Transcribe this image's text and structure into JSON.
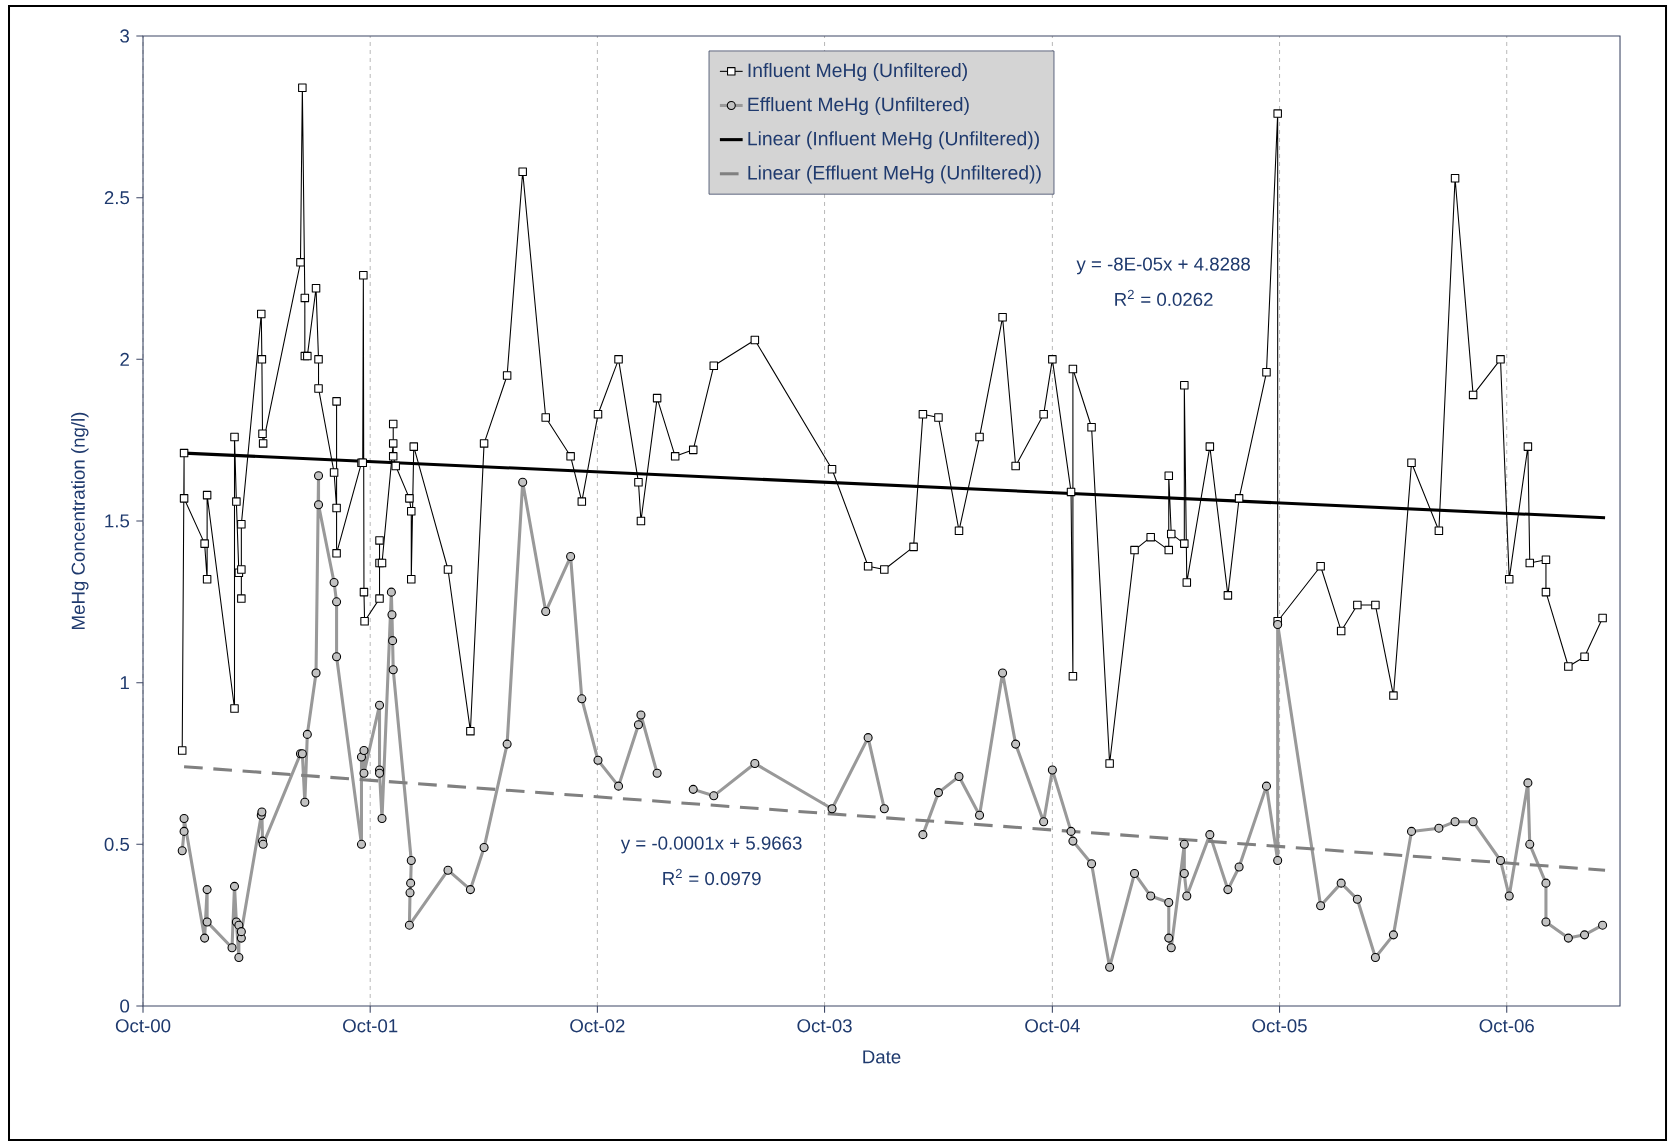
{
  "chart_data": {
    "type": "line",
    "xlabel": "Date",
    "ylabel": "MeHg Concentration (ng/l)",
    "xlim": [
      "2000-10-01",
      "2007-04-01"
    ],
    "ylim": [
      0,
      3
    ],
    "xticks": [
      {
        "value": "2000-10-01",
        "label": "Oct-00"
      },
      {
        "value": "2001-10-01",
        "label": "Oct-01"
      },
      {
        "value": "2002-10-01",
        "label": "Oct-02"
      },
      {
        "value": "2003-10-01",
        "label": "Oct-03"
      },
      {
        "value": "2004-10-01",
        "label": "Oct-04"
      },
      {
        "value": "2005-10-01",
        "label": "Oct-05"
      },
      {
        "value": "2006-10-01",
        "label": "Oct-06"
      }
    ],
    "yticks": [
      0,
      0.5,
      1,
      1.5,
      2,
      2.5,
      3
    ],
    "grid": "x",
    "legend": "top",
    "annotations": [
      "y = -8E-05x + 4.8288",
      "R$^{2}$ = 0.0262",
      "y = -0.0001x + 5.9663",
      "R$^{2}$ = 0.0979"
    ],
    "series": [
      {
        "name": "Influent MeHg (Unfiltered)",
        "color": "#000000",
        "marker": "square",
        "line_style": "solid",
        "x": [
          "2000-12-03",
          "2000-12-06",
          "2000-12-06",
          "2001-01-08",
          "2001-01-12",
          "2001-01-12",
          "2001-02-25",
          "2001-02-25",
          "2001-02-28",
          "2001-03-04",
          "2001-03-08",
          "2001-03-08",
          "2001-03-08",
          "2001-04-09",
          "2001-04-10",
          "2001-04-11",
          "2001-04-12",
          "2001-06-11",
          "2001-06-14",
          "2001-06-18",
          "2001-06-18",
          "2001-06-22",
          "2001-07-06",
          "2001-07-10",
          "2001-07-10",
          "2001-08-04",
          "2001-08-08",
          "2001-08-08",
          "2001-08-08",
          "2001-09-17",
          "2001-09-19",
          "2001-09-20",
          "2001-09-21",
          "2001-09-22",
          "2001-10-16",
          "2001-10-16",
          "2001-10-16",
          "2001-10-20",
          "2001-11-07",
          "2001-11-07",
          "2001-11-07",
          "2001-11-11",
          "2001-12-03",
          "2001-12-06",
          "2001-12-06",
          "2001-12-10",
          "2002-02-03",
          "2002-03-11",
          "2002-04-02",
          "2002-05-09",
          "2002-06-03",
          "2002-07-10",
          "2002-08-19",
          "2002-09-06",
          "2002-10-02",
          "2002-11-04",
          "2002-12-06",
          "2002-12-10",
          "2003-01-05",
          "2003-02-03",
          "2003-03-04",
          "2003-04-06",
          "2003-06-11",
          "2003-10-13",
          "2003-12-10",
          "2004-01-05",
          "2004-02-21",
          "2004-03-07",
          "2004-04-01",
          "2004-05-04",
          "2004-06-06",
          "2004-07-13",
          "2004-08-03",
          "2004-09-17",
          "2004-10-01",
          "2004-10-31",
          "2004-11-03",
          "2004-11-03",
          "2004-12-03",
          "2005-01-01",
          "2005-02-10",
          "2005-03-08",
          "2005-04-06",
          "2005-04-06",
          "2005-04-10",
          "2005-05-01",
          "2005-05-01",
          "2005-05-05",
          "2005-06-11",
          "2005-07-10",
          "2005-07-28",
          "2005-09-10",
          "2005-09-28",
          "2005-09-28",
          "2005-12-06",
          "2006-01-08",
          "2006-02-03",
          "2006-03-04",
          "2006-04-02",
          "2006-05-01",
          "2006-06-14",
          "2006-07-10",
          "2006-08-08",
          "2006-09-21",
          "2006-10-05",
          "2006-11-04",
          "2006-11-07",
          "2006-12-03",
          "2006-12-03",
          "2007-01-08",
          "2007-02-03",
          "2007-03-04"
        ],
        "values": [
          0.79,
          1.71,
          1.57,
          1.43,
          1.32,
          1.58,
          0.92,
          1.76,
          1.56,
          1.34,
          1.35,
          1.26,
          1.49,
          2.14,
          2.0,
          1.77,
          1.74,
          2.3,
          2.84,
          2.19,
          2.01,
          2.01,
          2.22,
          2.0,
          1.91,
          1.65,
          1.54,
          1.87,
          1.4,
          1.68,
          1.68,
          2.26,
          1.28,
          1.19,
          1.26,
          1.44,
          1.37,
          1.37,
          1.74,
          1.8,
          1.7,
          1.67,
          1.57,
          1.53,
          1.32,
          1.73,
          1.35,
          0.85,
          1.74,
          1.95,
          2.58,
          1.82,
          1.7,
          1.56,
          1.83,
          2.0,
          1.62,
          1.5,
          1.88,
          1.7,
          1.72,
          1.98,
          2.06,
          1.66,
          1.36,
          1.35,
          1.42,
          1.83,
          1.82,
          1.47,
          1.76,
          2.13,
          1.67,
          1.83,
          2.0,
          1.59,
          1.02,
          1.97,
          1.79,
          0.75,
          1.41,
          1.45,
          1.41,
          1.64,
          1.46,
          1.43,
          1.92,
          1.31,
          1.73,
          1.27,
          1.57,
          1.96,
          2.76,
          1.19,
          1.36,
          1.16,
          1.24,
          1.24,
          0.96,
          1.68,
          1.47,
          2.56,
          1.89,
          2.0,
          1.32,
          1.73,
          1.37,
          1.38,
          1.28,
          1.05,
          1.08,
          1.2
        ]
      },
      {
        "name": "Effluent MeHg (Unfiltered)",
        "color": "#999999",
        "marker": "circle",
        "line_style": "solid",
        "x": [
          "2000-12-03",
          "2000-12-06",
          "2000-12-06",
          "2001-01-08",
          "2001-01-12",
          "2001-01-12",
          "2001-02-21",
          "2001-02-25",
          "2001-02-28",
          "2001-03-04",
          "2001-03-04",
          "2001-03-08",
          "2001-03-08",
          "2001-04-09",
          "2001-04-10",
          "2001-04-11",
          "2001-04-12",
          "2001-06-11",
          "2001-06-14",
          "2001-06-18",
          "2001-06-22",
          "2001-07-06",
          "2001-07-10",
          "2001-07-10",
          "2001-08-04",
          "2001-08-08",
          "2001-08-08",
          "2001-09-17",
          "2001-09-17",
          "2001-09-21",
          "2001-09-21",
          "2001-10-16",
          "2001-10-16",
          "2001-10-16",
          "2001-10-20",
          "2001-11-04",
          "2001-11-05",
          "2001-11-06",
          "2001-11-07",
          "2001-12-06",
          "2001-12-05",
          "2001-12-04",
          "2001-12-03",
          "2002-02-03",
          "2002-03-11",
          "2002-04-02",
          "2002-05-09",
          "2002-06-03",
          "2002-07-10",
          "2002-08-19",
          "2002-09-06",
          "2002-10-02",
          "2002-11-04",
          "2002-12-06",
          "2002-12-10",
          "2003-01-05",
          "2003-01-19",
          "2003-03-04",
          "2003-04-06",
          "2003-06-11",
          "2003-10-13",
          "2003-12-10",
          "2004-01-05",
          "2004-02-07",
          "2004-03-07",
          "2004-04-01",
          "2004-05-04",
          "2004-06-06",
          "2004-07-13",
          "2004-08-03",
          "2004-09-17",
          "2004-10-01",
          "2004-10-31",
          "2004-11-03",
          "2004-12-03",
          "2005-01-01",
          "2005-02-10",
          "2005-03-08",
          "2005-04-06",
          "2005-04-06",
          "2005-04-10",
          "2005-05-01",
          "2005-05-01",
          "2005-05-05",
          "2005-06-11",
          "2005-07-10",
          "2005-07-28",
          "2005-09-10",
          "2005-09-28",
          "2005-09-28",
          "2005-12-06",
          "2006-01-08",
          "2006-02-03",
          "2006-03-04",
          "2006-04-02",
          "2006-05-01",
          "2006-06-14",
          "2006-07-10",
          "2006-08-08",
          "2006-09-21",
          "2006-10-05",
          "2006-11-04",
          "2006-11-07",
          "2006-12-03",
          "2006-12-03",
          "2007-01-08",
          "2007-02-03",
          "2007-03-04"
        ],
        "values": [
          0.48,
          0.54,
          0.58,
          0.21,
          0.36,
          0.26,
          0.18,
          0.37,
          0.26,
          0.15,
          0.25,
          0.21,
          0.23,
          0.59,
          0.6,
          0.51,
          0.5,
          0.78,
          0.78,
          0.63,
          0.84,
          1.03,
          1.64,
          1.55,
          1.31,
          1.25,
          1.08,
          0.5,
          0.77,
          0.79,
          0.72,
          0.93,
          0.73,
          0.72,
          0.58,
          1.28,
          1.21,
          1.13,
          1.04,
          0.45,
          0.38,
          0.35,
          0.25,
          0.42,
          0.36,
          0.49,
          0.81,
          1.62,
          1.22,
          1.39,
          0.95,
          0.76,
          0.68,
          0.87,
          0.9,
          0.72,
          null,
          0.67,
          0.65,
          0.75,
          0.61,
          0.83,
          0.61,
          null,
          0.53,
          0.66,
          0.71,
          0.59,
          1.03,
          0.81,
          0.57,
          0.73,
          0.54,
          0.51,
          0.44,
          0.12,
          0.41,
          0.34,
          0.32,
          0.21,
          0.18,
          0.5,
          0.41,
          0.34,
          0.53,
          0.36,
          0.43,
          0.68,
          0.45,
          1.18,
          0.31,
          0.38,
          0.33,
          0.15,
          0.22,
          0.54,
          0.55,
          0.57,
          0.57,
          0.45,
          0.34,
          0.69,
          0.5,
          0.38,
          0.26,
          0.21,
          0.22,
          0.25
        ]
      },
      {
        "name": "Linear (Influent MeHg (Unfiltered))",
        "color": "#000000",
        "marker": "none",
        "line_style": "solid",
        "x": [
          "2000-12-06",
          "2007-03-08"
        ],
        "values": [
          1.71,
          1.51
        ]
      },
      {
        "name": "Linear (Effluent MeHg (Unfiltered))",
        "color": "#808080",
        "marker": "none",
        "line_style": "dashed",
        "x": [
          "2000-12-06",
          "2007-03-08"
        ],
        "values": [
          0.74,
          0.42
        ]
      }
    ]
  }
}
